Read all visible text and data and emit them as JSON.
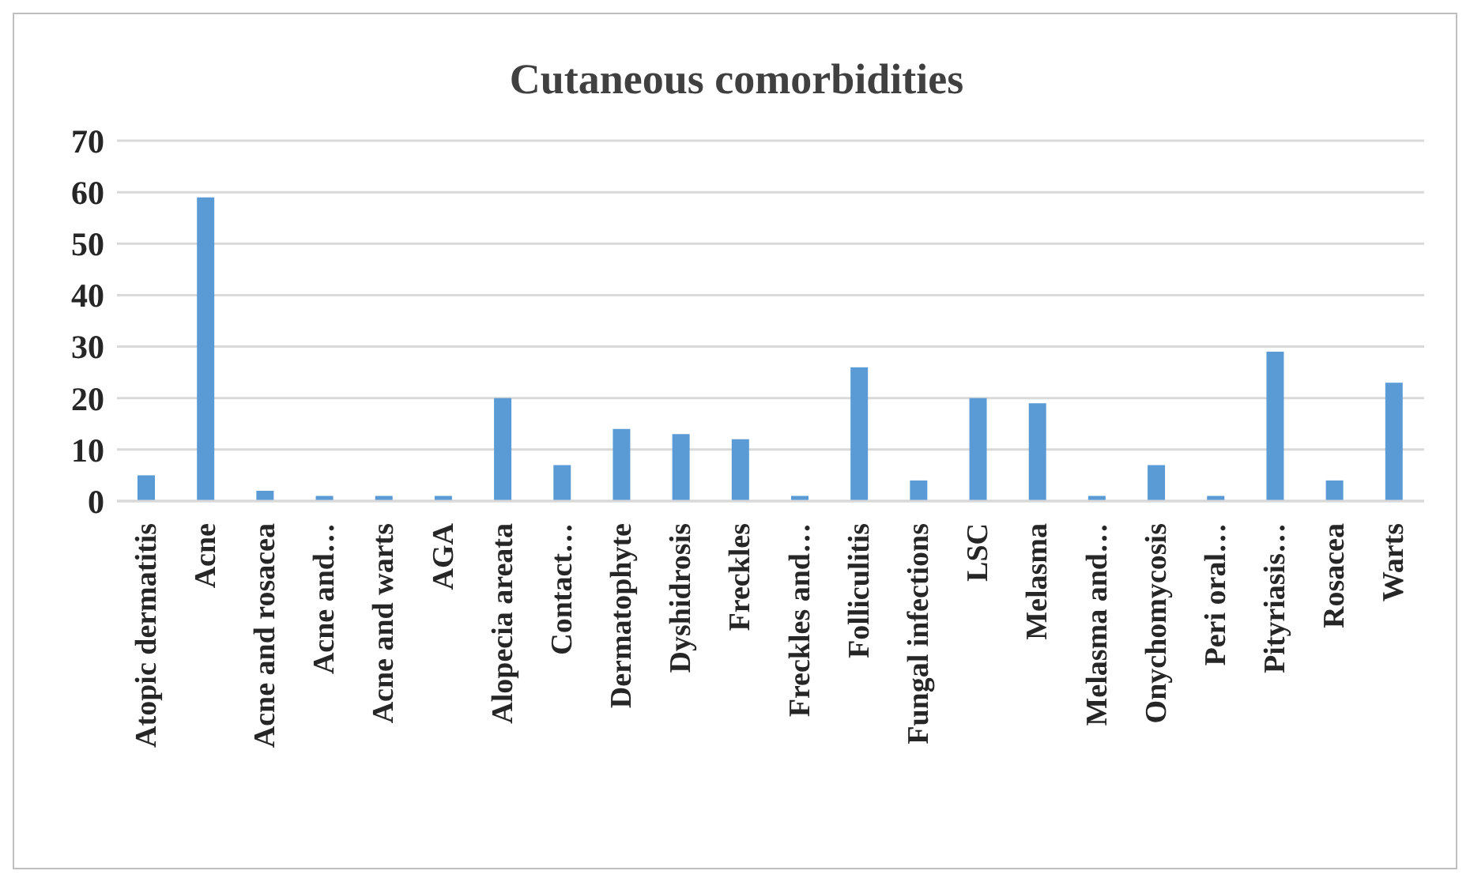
{
  "chart_data": {
    "type": "bar",
    "title": "Cutaneous comorbidities",
    "categories": [
      "Atopic dermatitis",
      "Acne",
      "Acne and rosacea",
      "Acne and…",
      "Acne and warts",
      "AGA",
      "Alopecia areata",
      "Contact…",
      "Dermatophyte",
      "Dyshidrosis",
      "Freckles",
      "Freckles and…",
      "Folliculitis",
      "Fungal infections",
      "LSC",
      "Melasma",
      "Melasma and…",
      "Onychomycosis",
      "Peri oral…",
      "Pityriasis…",
      "Rosacea",
      "Warts"
    ],
    "values": [
      5,
      59,
      2,
      1,
      1,
      1,
      20,
      7,
      14,
      13,
      12,
      1,
      26,
      4,
      20,
      19,
      1,
      7,
      1,
      29,
      4,
      23
    ],
    "color": "#5b9bd5",
    "ylim": [
      0,
      70
    ],
    "yticks": [
      0,
      10,
      20,
      30,
      40,
      50,
      60,
      70
    ],
    "grid": "y"
  }
}
